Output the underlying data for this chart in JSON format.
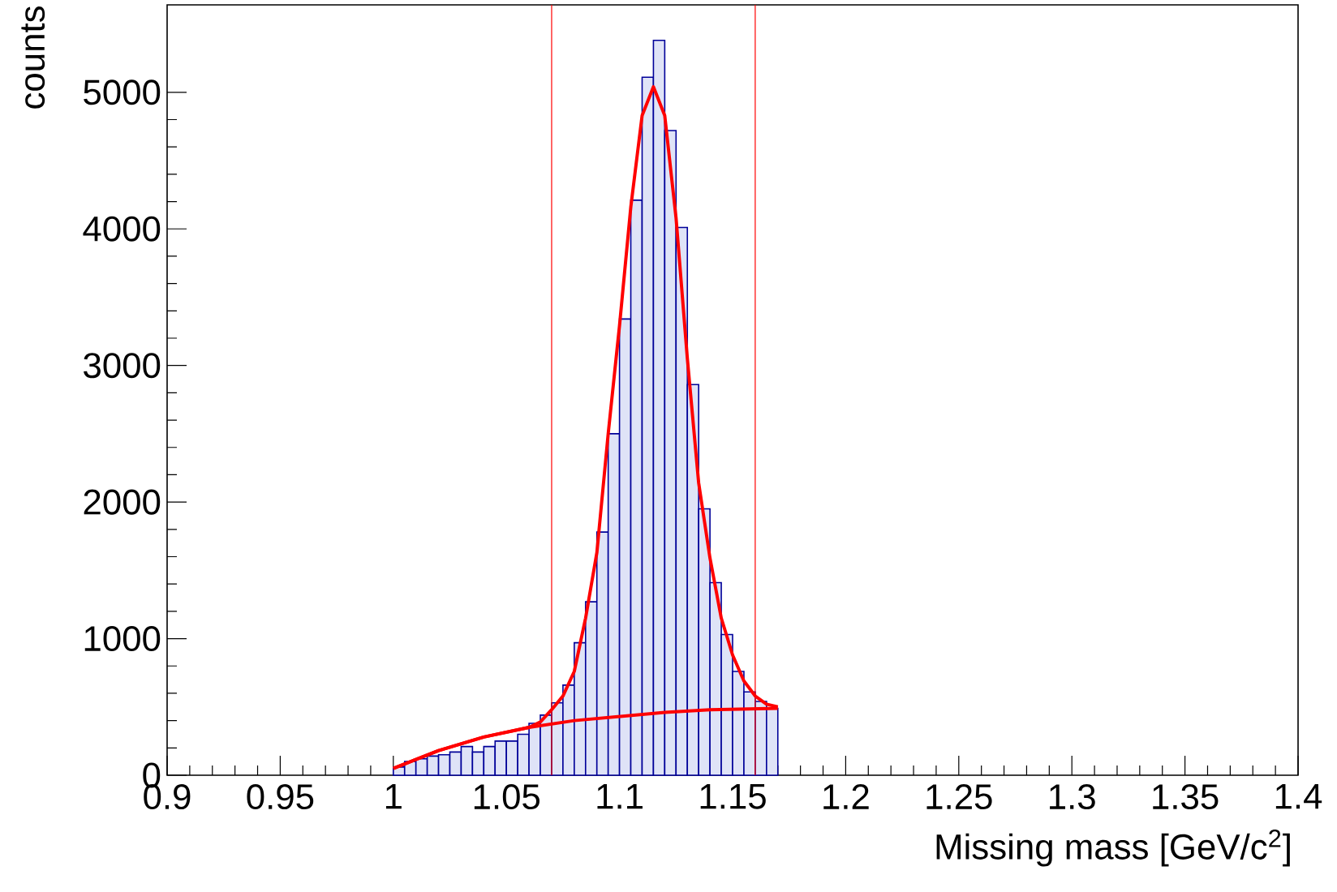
{
  "chart_data": {
    "type": "histogram",
    "xlabel": "Missing mass [GeV/c$^{2}$]",
    "ylabel": "counts",
    "bins": [
      1.0,
      1.005,
      1.01,
      1.015,
      1.02,
      1.025,
      1.03,
      1.035,
      1.04,
      1.045,
      1.05,
      1.055,
      1.06,
      1.065,
      1.07,
      1.075,
      1.08,
      1.085,
      1.09,
      1.095,
      1.1,
      1.105,
      1.11,
      1.115,
      1.12,
      1.125,
      1.13,
      1.135,
      1.14,
      1.145,
      1.15,
      1.155,
      1.16,
      1.165,
      1.17
    ],
    "values": [
      60,
      100,
      120,
      140,
      150,
      170,
      210,
      170,
      210,
      250,
      250,
      300,
      380,
      440,
      530,
      660,
      970,
      1270,
      1780,
      2500,
      3340,
      4210,
      5110,
      5380,
      4720,
      4010,
      2860,
      1950,
      1410,
      1030,
      760,
      610,
      540,
      490
    ],
    "color": "#000099",
    "series": [
      {
        "type": "line",
        "color": "#ff0000",
        "x": [
          1.0,
          1.02,
          1.04,
          1.06,
          1.08,
          1.1,
          1.12,
          1.14,
          1.17
        ],
        "values": [
          50,
          180,
          280,
          350,
          400,
          430,
          460,
          480,
          490
        ]
      },
      {
        "type": "line",
        "color": "#ff0000",
        "x": [
          1.0,
          1.02,
          1.04,
          1.06,
          1.065,
          1.07,
          1.075,
          1.08,
          1.085,
          1.09,
          1.095,
          1.1,
          1.105,
          1.11,
          1.115,
          1.12,
          1.125,
          1.13,
          1.135,
          1.14,
          1.145,
          1.15,
          1.155,
          1.16,
          1.165,
          1.17
        ],
        "values": [
          50,
          180,
          280,
          350,
          390,
          480,
          580,
          760,
          1150,
          1630,
          2500,
          3290,
          4160,
          4830,
          5040,
          4830,
          4080,
          3050,
          2140,
          1590,
          1150,
          880,
          690,
          580,
          520,
          500
        ]
      }
    ],
    "ref_lines": [
      {
        "axis": "x",
        "value": 1.07,
        "color": "#ff0000"
      },
      {
        "axis": "x",
        "value": 1.16,
        "color": "#ff0000"
      }
    ],
    "xlim": [
      0.9,
      1.4
    ],
    "xticks": [
      0.9,
      0.95,
      1,
      1.05,
      1.1,
      1.15,
      1.2,
      1.25,
      1.3,
      1.35,
      1.4
    ],
    "ylim": [
      0,
      5640
    ],
    "yticks": [
      0,
      1000,
      2000,
      3000,
      4000,
      5000
    ],
    "grid": false
  }
}
